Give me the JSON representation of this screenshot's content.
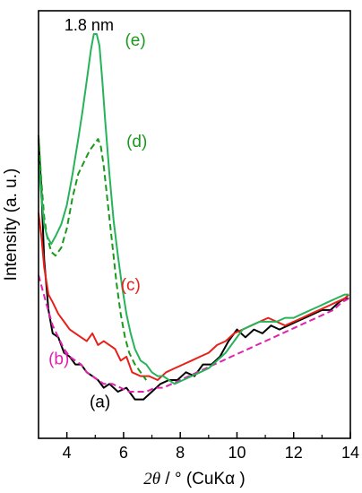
{
  "chart_data": {
    "type": "line",
    "title": "",
    "xlabel_italic": "2θ",
    "xlabel_rest": " / ° (CuKα )",
    "ylabel": "Intensity (a. u.)",
    "xlim": [
      3,
      14
    ],
    "xticks": [
      4,
      6,
      8,
      10,
      12,
      14
    ],
    "y_ticks_shown": false,
    "grid": false,
    "annotation": {
      "text": "1.8 nm",
      "x": 5.1,
      "y": 104,
      "color": "#1a9a1a"
    },
    "series": [
      {
        "name": "(a)",
        "label": {
          "text": "(a)",
          "x": 4.8,
          "y": 8,
          "color": "#000000"
        },
        "color": "#000000",
        "dash": "solid",
        "x": [
          3.0,
          3.1,
          3.2,
          3.35,
          3.5,
          3.7,
          3.9,
          4.1,
          4.3,
          4.5,
          4.7,
          4.9,
          5.1,
          5.3,
          5.5,
          5.8,
          6.1,
          6.4,
          6.7,
          7.0,
          7.3,
          7.6,
          7.9,
          8.2,
          8.5,
          8.8,
          9.1,
          9.4,
          9.7,
          10.0,
          10.3,
          10.6,
          10.9,
          11.2,
          11.5,
          11.8,
          12.1,
          12.4,
          12.7,
          13.0,
          13.3,
          13.6,
          13.8,
          13.95
        ],
        "y": [
          77,
          64,
          46,
          33,
          27,
          26,
          22,
          21,
          19,
          19,
          17,
          16,
          15,
          13,
          14,
          12,
          13,
          10,
          10,
          12,
          14,
          15,
          15,
          17,
          16,
          19,
          19,
          21,
          25,
          28,
          26,
          28,
          27,
          29,
          28,
          29,
          30,
          31,
          32,
          33,
          33,
          35,
          36,
          36
        ]
      },
      {
        "name": "(b)",
        "label": {
          "text": "(b)",
          "x": 3.35,
          "y": 19,
          "color": "#e020b0"
        },
        "color": "#e020b0",
        "dash": "dashed",
        "x": [
          3.0,
          3.15,
          3.3,
          3.5,
          3.7,
          3.9,
          4.1,
          4.3,
          4.5,
          4.7,
          4.9,
          5.1,
          5.3,
          5.6,
          5.9,
          6.2,
          6.5,
          6.8,
          7.1,
          7.4,
          7.7,
          8.0,
          8.3,
          8.6,
          8.9,
          9.2,
          9.5,
          9.8,
          10.1,
          10.4,
          10.7,
          11.0,
          11.3,
          11.6,
          11.9,
          12.2,
          12.5,
          12.8,
          13.1,
          13.4,
          13.7,
          13.95
        ],
        "y": [
          42,
          38,
          34,
          29,
          26,
          23,
          21,
          20,
          19,
          17,
          16,
          15,
          14,
          14,
          13,
          12,
          12,
          12,
          13,
          13,
          14,
          15,
          16,
          17,
          18,
          19,
          20,
          21,
          22,
          23,
          24,
          25,
          26,
          27,
          28,
          29,
          30,
          31,
          32,
          33,
          35,
          36
        ]
      },
      {
        "name": "(c)",
        "label": {
          "text": "(c)",
          "x": 5.9,
          "y": 38,
          "color": "#e8201a"
        },
        "color": "#e8201a",
        "dash": "solid",
        "x": [
          3.0,
          3.1,
          3.2,
          3.35,
          3.5,
          3.7,
          3.9,
          4.1,
          4.3,
          4.5,
          4.7,
          4.9,
          5.1,
          5.3,
          5.5,
          5.7,
          5.9,
          6.1,
          6.3,
          6.6,
          6.9,
          7.2,
          7.5,
          7.8,
          8.1,
          8.4,
          8.7,
          9.0,
          9.3,
          9.6,
          9.9,
          10.2,
          10.5,
          10.8,
          11.1,
          11.4,
          11.7,
          12.0,
          12.3,
          12.6,
          12.9,
          13.2,
          13.5,
          13.8,
          13.95
        ],
        "y": [
          58,
          52,
          44,
          37,
          35,
          32,
          30,
          28,
          27,
          26,
          25,
          27,
          24,
          25,
          24,
          23,
          20,
          21,
          17,
          16,
          16,
          15,
          17,
          18,
          19,
          20,
          21,
          22,
          24,
          25,
          27,
          28,
          29,
          30,
          31,
          30,
          29,
          30,
          31,
          32,
          33,
          34,
          35,
          36,
          37
        ]
      },
      {
        "name": "(d)",
        "label": {
          "text": "(d)",
          "x": 6.1,
          "y": 75,
          "color": "#1a9a1a"
        },
        "color": "#1a9a1a",
        "dash": "dashed",
        "x": [
          3.0,
          3.1,
          3.2,
          3.3,
          3.45,
          3.6,
          3.8,
          4.0,
          4.2,
          4.4,
          4.6,
          4.8,
          5.0,
          5.1,
          5.2,
          5.3,
          5.45,
          5.6,
          5.75,
          5.9,
          6.05,
          6.2,
          6.4,
          6.6,
          6.8
        ],
        "y": [
          78,
          66,
          57,
          52,
          48,
          47,
          49,
          54,
          62,
          68,
          71,
          74,
          76,
          77,
          75,
          70,
          60,
          50,
          40,
          32,
          26,
          22,
          19,
          17,
          15
        ]
      },
      {
        "name": "(e)",
        "label": {
          "text": "(e)",
          "x": 6.05,
          "y": 101,
          "color": "#1a9a1a"
        },
        "color": "#26b35a",
        "dash": "solid",
        "x": [
          3.0,
          3.1,
          3.2,
          3.3,
          3.45,
          3.6,
          3.8,
          4.0,
          4.2,
          4.4,
          4.55,
          4.7,
          4.85,
          4.95,
          5.05,
          5.15,
          5.25,
          5.35,
          5.5,
          5.65,
          5.8,
          5.95,
          6.1,
          6.25,
          6.4,
          6.6,
          6.8,
          7.0,
          7.2,
          7.4,
          7.6,
          7.8,
          8.1,
          8.4,
          8.7,
          9.0,
          9.3,
          9.6,
          9.9,
          10.2,
          10.5,
          10.8,
          11.1,
          11.4,
          11.7,
          12.0,
          12.3,
          12.6,
          12.9,
          13.2,
          13.5,
          13.8,
          13.95
        ],
        "y": [
          72,
          62,
          55,
          52,
          50,
          52,
          55,
          60,
          68,
          77,
          84,
          92,
          100,
          104,
          104,
          101,
          92,
          82,
          68,
          56,
          47,
          39,
          32,
          27,
          23,
          20,
          19,
          17,
          16,
          16,
          15,
          14,
          15,
          16,
          17,
          18,
          20,
          22,
          25,
          28,
          29,
          30,
          30,
          30,
          31,
          31,
          32,
          33,
          34,
          35,
          36,
          37,
          37
        ]
      }
    ]
  }
}
